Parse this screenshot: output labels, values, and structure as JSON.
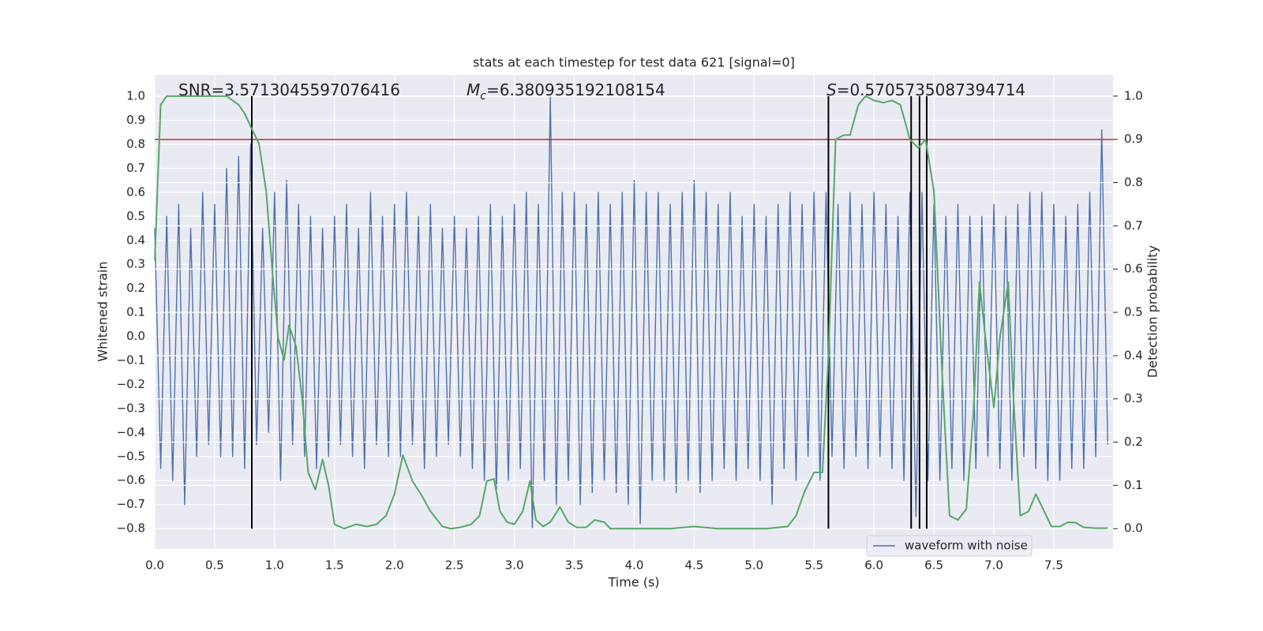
{
  "chart_data": {
    "type": "line",
    "title": "stats at each timestep for test data 621 [signal=0]",
    "xlabel": "Time (s)",
    "ylabel": "Whitened strain",
    "y2label": "Detection probability",
    "xlim": [
      0,
      7.994
    ],
    "ylim": [
      -0.885,
      1.089
    ],
    "y2lim": [
      -0.047,
      1.049
    ],
    "xticks": [
      {
        "value": 0,
        "label": "0.0"
      },
      0.5,
      {
        "value": 1,
        "label": "1.0"
      },
      1.5,
      {
        "value": 2,
        "label": "2.0"
      },
      2.5,
      {
        "value": 3,
        "label": "3.0"
      },
      3.5,
      {
        "value": 4,
        "label": "4.0"
      },
      4.5,
      {
        "value": 5,
        "label": "5.0"
      },
      5.5,
      {
        "value": 6,
        "label": "6.0"
      },
      6.5,
      {
        "value": 7,
        "label": "7.0"
      },
      7.5
    ],
    "yticks": [
      {
        "value": -0.8,
        "label": "−0.8"
      },
      {
        "value": -0.7,
        "label": "−0.7"
      },
      {
        "value": -0.6,
        "label": "−0.6"
      },
      {
        "value": -0.5,
        "label": "−0.5"
      },
      {
        "value": -0.4,
        "label": "−0.4"
      },
      {
        "value": -0.3,
        "label": "−0.3"
      },
      {
        "value": -0.2,
        "label": "−0.2"
      },
      {
        "value": -0.1,
        "label": "−0.1"
      },
      {
        "value": 0,
        "label": "0.0"
      },
      0.1,
      0.2,
      0.3,
      0.4,
      0.5,
      0.6,
      0.7,
      0.8,
      0.9,
      {
        "value": 1,
        "label": "1.0"
      }
    ],
    "y2ticks": [
      {
        "value": 0,
        "label": "0.0"
      },
      0.1,
      0.2,
      0.3,
      0.4,
      0.5,
      0.6,
      0.7,
      0.8,
      0.9,
      {
        "value": 1,
        "label": "1.0"
      }
    ],
    "grid": true,
    "legend": "lower right",
    "series": [
      {
        "name": "waveform with noise",
        "color": "#4c72b0",
        "x": [
          0,
          0.05,
          0.1,
          0.15,
          0.2,
          0.25,
          0.3,
          0.35,
          0.4,
          0.45,
          0.5,
          0.55,
          0.6,
          0.65,
          0.7,
          0.75,
          0.8,
          0.85,
          0.9,
          0.95,
          1,
          1.05,
          1.1,
          1.15,
          1.2,
          1.25,
          1.3,
          1.35,
          1.4,
          1.45,
          1.5,
          1.55,
          1.6,
          1.65,
          1.7,
          1.75,
          1.8,
          1.85,
          1.9,
          1.95,
          2,
          2.05,
          2.1,
          2.15,
          2.2,
          2.25,
          2.3,
          2.35,
          2.4,
          2.45,
          2.5,
          2.55,
          2.6,
          2.65,
          2.7,
          2.75,
          2.8,
          2.85,
          2.9,
          2.95,
          3,
          3.05,
          3.1,
          3.15,
          3.2,
          3.25,
          3.3,
          3.35,
          3.4,
          3.45,
          3.5,
          3.55,
          3.6,
          3.65,
          3.7,
          3.75,
          3.8,
          3.85,
          3.9,
          3.95,
          4,
          4.05,
          4.1,
          4.15,
          4.2,
          4.25,
          4.3,
          4.35,
          4.4,
          4.45,
          4.5,
          4.55,
          4.6,
          4.65,
          4.7,
          4.75,
          4.8,
          4.85,
          4.9,
          4.95,
          5,
          5.05,
          5.1,
          5.15,
          5.2,
          5.25,
          5.3,
          5.35,
          5.4,
          5.45,
          5.5,
          5.55,
          5.6,
          5.65,
          5.7,
          5.75,
          5.8,
          5.85,
          5.9,
          5.95,
          6,
          6.05,
          6.1,
          6.15,
          6.2,
          6.25,
          6.3,
          6.35,
          6.4,
          6.45,
          6.5,
          6.55,
          6.6,
          6.65,
          6.7,
          6.75,
          6.8,
          6.85,
          6.9,
          6.95,
          7,
          7.05,
          7.1,
          7.15,
          7.2,
          7.25,
          7.3,
          7.35,
          7.4,
          7.45,
          7.5,
          7.55,
          7.6,
          7.65,
          7.7,
          7.75,
          7.8,
          7.85,
          7.9,
          7.95
        ],
        "values": [
          0.45,
          -0.55,
          0.5,
          -0.6,
          0.55,
          -0.7,
          0.45,
          -0.5,
          0.6,
          -0.45,
          0.55,
          -0.5,
          0.7,
          -0.5,
          0.75,
          -0.55,
          0.8,
          -0.45,
          0.45,
          -0.4,
          0.6,
          -0.6,
          0.65,
          -0.45,
          0.55,
          -0.5,
          0.5,
          -0.55,
          0.45,
          -0.5,
          0.5,
          -0.45,
          0.55,
          -0.5,
          0.45,
          -0.55,
          0.6,
          -0.45,
          0.5,
          -0.5,
          0.55,
          -0.5,
          0.6,
          -0.45,
          0.5,
          -0.55,
          0.55,
          -0.5,
          0.45,
          -0.45,
          0.5,
          -0.5,
          0.45,
          -0.55,
          0.5,
          -0.6,
          0.55,
          -0.65,
          0.5,
          -0.6,
          0.55,
          -0.55,
          0.6,
          -0.8,
          0.55,
          -0.6,
          1.0,
          -0.7,
          0.6,
          -0.6,
          0.6,
          -0.7,
          0.55,
          -0.65,
          0.6,
          -0.6,
          0.55,
          -0.65,
          0.6,
          -0.7,
          0.65,
          -0.78,
          0.6,
          -0.6,
          0.6,
          -0.6,
          0.55,
          -0.65,
          0.6,
          -0.6,
          0.65,
          -0.65,
          0.6,
          -0.6,
          0.55,
          -0.55,
          0.6,
          -0.6,
          0.5,
          -0.55,
          0.55,
          -0.6,
          0.5,
          -0.7,
          0.55,
          -0.55,
          0.6,
          -0.6,
          0.55,
          -0.5,
          0.6,
          -0.6,
          0.6,
          -0.5,
          0.55,
          -0.55,
          0.6,
          -0.5,
          0.55,
          -0.55,
          0.6,
          -0.5,
          0.55,
          -0.55,
          0.5,
          -0.6,
          0.6,
          -0.75,
          0.6,
          -0.6,
          0.55,
          -0.6,
          0.5,
          -0.55,
          0.55,
          -0.6,
          0.5,
          -0.55,
          0.5,
          -0.5,
          0.55,
          -0.55,
          0.5,
          -0.6,
          0.55,
          -0.5,
          0.6,
          -0.55,
          0.6,
          -0.6,
          0.55,
          -0.6,
          0.5,
          -0.55,
          0.55,
          -0.55,
          0.6,
          -0.5,
          0.86,
          -0.45
        ]
      },
      {
        "color": "#55a868",
        "axis": "y2",
        "x": [
          0,
          0.05,
          0.1,
          0.2,
          0.3,
          0.4,
          0.5,
          0.6,
          0.65,
          0.7,
          0.75,
          0.8,
          0.87,
          0.93,
          0.98,
          1.03,
          1.08,
          1.12,
          1.18,
          1.23,
          1.28,
          1.34,
          1.4,
          1.45,
          1.5,
          1.58,
          1.68,
          1.77,
          1.85,
          1.93,
          2.0,
          2.07,
          2.15,
          2.22,
          2.3,
          2.4,
          2.47,
          2.55,
          2.64,
          2.71,
          2.77,
          2.83,
          2.88,
          2.94,
          3.0,
          3.07,
          3.13,
          3.18,
          3.24,
          3.3,
          3.38,
          3.45,
          3.52,
          3.6,
          3.67,
          3.75,
          3.8,
          3.95,
          4.1,
          4.3,
          4.5,
          4.7,
          4.9,
          5.1,
          5.28,
          5.35,
          5.42,
          5.5,
          5.57,
          5.62,
          5.68,
          5.75,
          5.8,
          5.87,
          5.93,
          6.0,
          6.08,
          6.15,
          6.22,
          6.3,
          6.37,
          6.43,
          6.5,
          6.57,
          6.63,
          6.7,
          6.77,
          6.83,
          6.88,
          6.93,
          7.0,
          7.05,
          7.12,
          7.16,
          7.22,
          7.29,
          7.35,
          7.42,
          7.48,
          7.55,
          7.62,
          7.68,
          7.75,
          7.85,
          7.95
        ],
        "values": [
          0.62,
          0.98,
          1.0,
          1.0,
          1.0,
          1.0,
          1.0,
          1.0,
          0.99,
          0.98,
          0.96,
          0.93,
          0.89,
          0.78,
          0.6,
          0.44,
          0.39,
          0.47,
          0.42,
          0.3,
          0.13,
          0.09,
          0.16,
          0.1,
          0.01,
          0.0,
          0.01,
          0.005,
          0.01,
          0.03,
          0.08,
          0.17,
          0.11,
          0.08,
          0.04,
          0.005,
          0.0,
          0.003,
          0.01,
          0.03,
          0.11,
          0.115,
          0.04,
          0.015,
          0.01,
          0.04,
          0.11,
          0.02,
          0.005,
          0.015,
          0.05,
          0.015,
          0.003,
          0.003,
          0.02,
          0.015,
          0.0,
          0.0,
          0.0,
          0.0,
          0.005,
          0.0,
          0.0,
          0.0,
          0.005,
          0.03,
          0.085,
          0.13,
          0.13,
          0.4,
          0.9,
          0.91,
          0.91,
          0.98,
          1.0,
          0.99,
          0.985,
          0.99,
          0.98,
          0.9,
          0.88,
          0.9,
          0.78,
          0.35,
          0.03,
          0.02,
          0.045,
          0.27,
          0.57,
          0.44,
          0.28,
          0.44,
          0.57,
          0.32,
          0.03,
          0.04,
          0.08,
          0.04,
          0.005,
          0.005,
          0.015,
          0.014,
          0.003,
          0.001,
          0.001
        ]
      }
    ],
    "threshold": {
      "value": 0.9,
      "color": "#c03030"
    },
    "vlines": {
      "x": [
        0.81,
        5.62,
        6.31,
        6.38,
        6.44
      ],
      "ymin": 0,
      "ymax": 1,
      "color": "#000000"
    },
    "annotations": [
      {
        "text": "SNR=3.5713045597076416"
      },
      {
        "symbol": "M",
        "sub": "c",
        "text": "=6.380935192108154"
      },
      {
        "symbol": "S",
        "text": "=0.5705735087394714"
      }
    ]
  }
}
